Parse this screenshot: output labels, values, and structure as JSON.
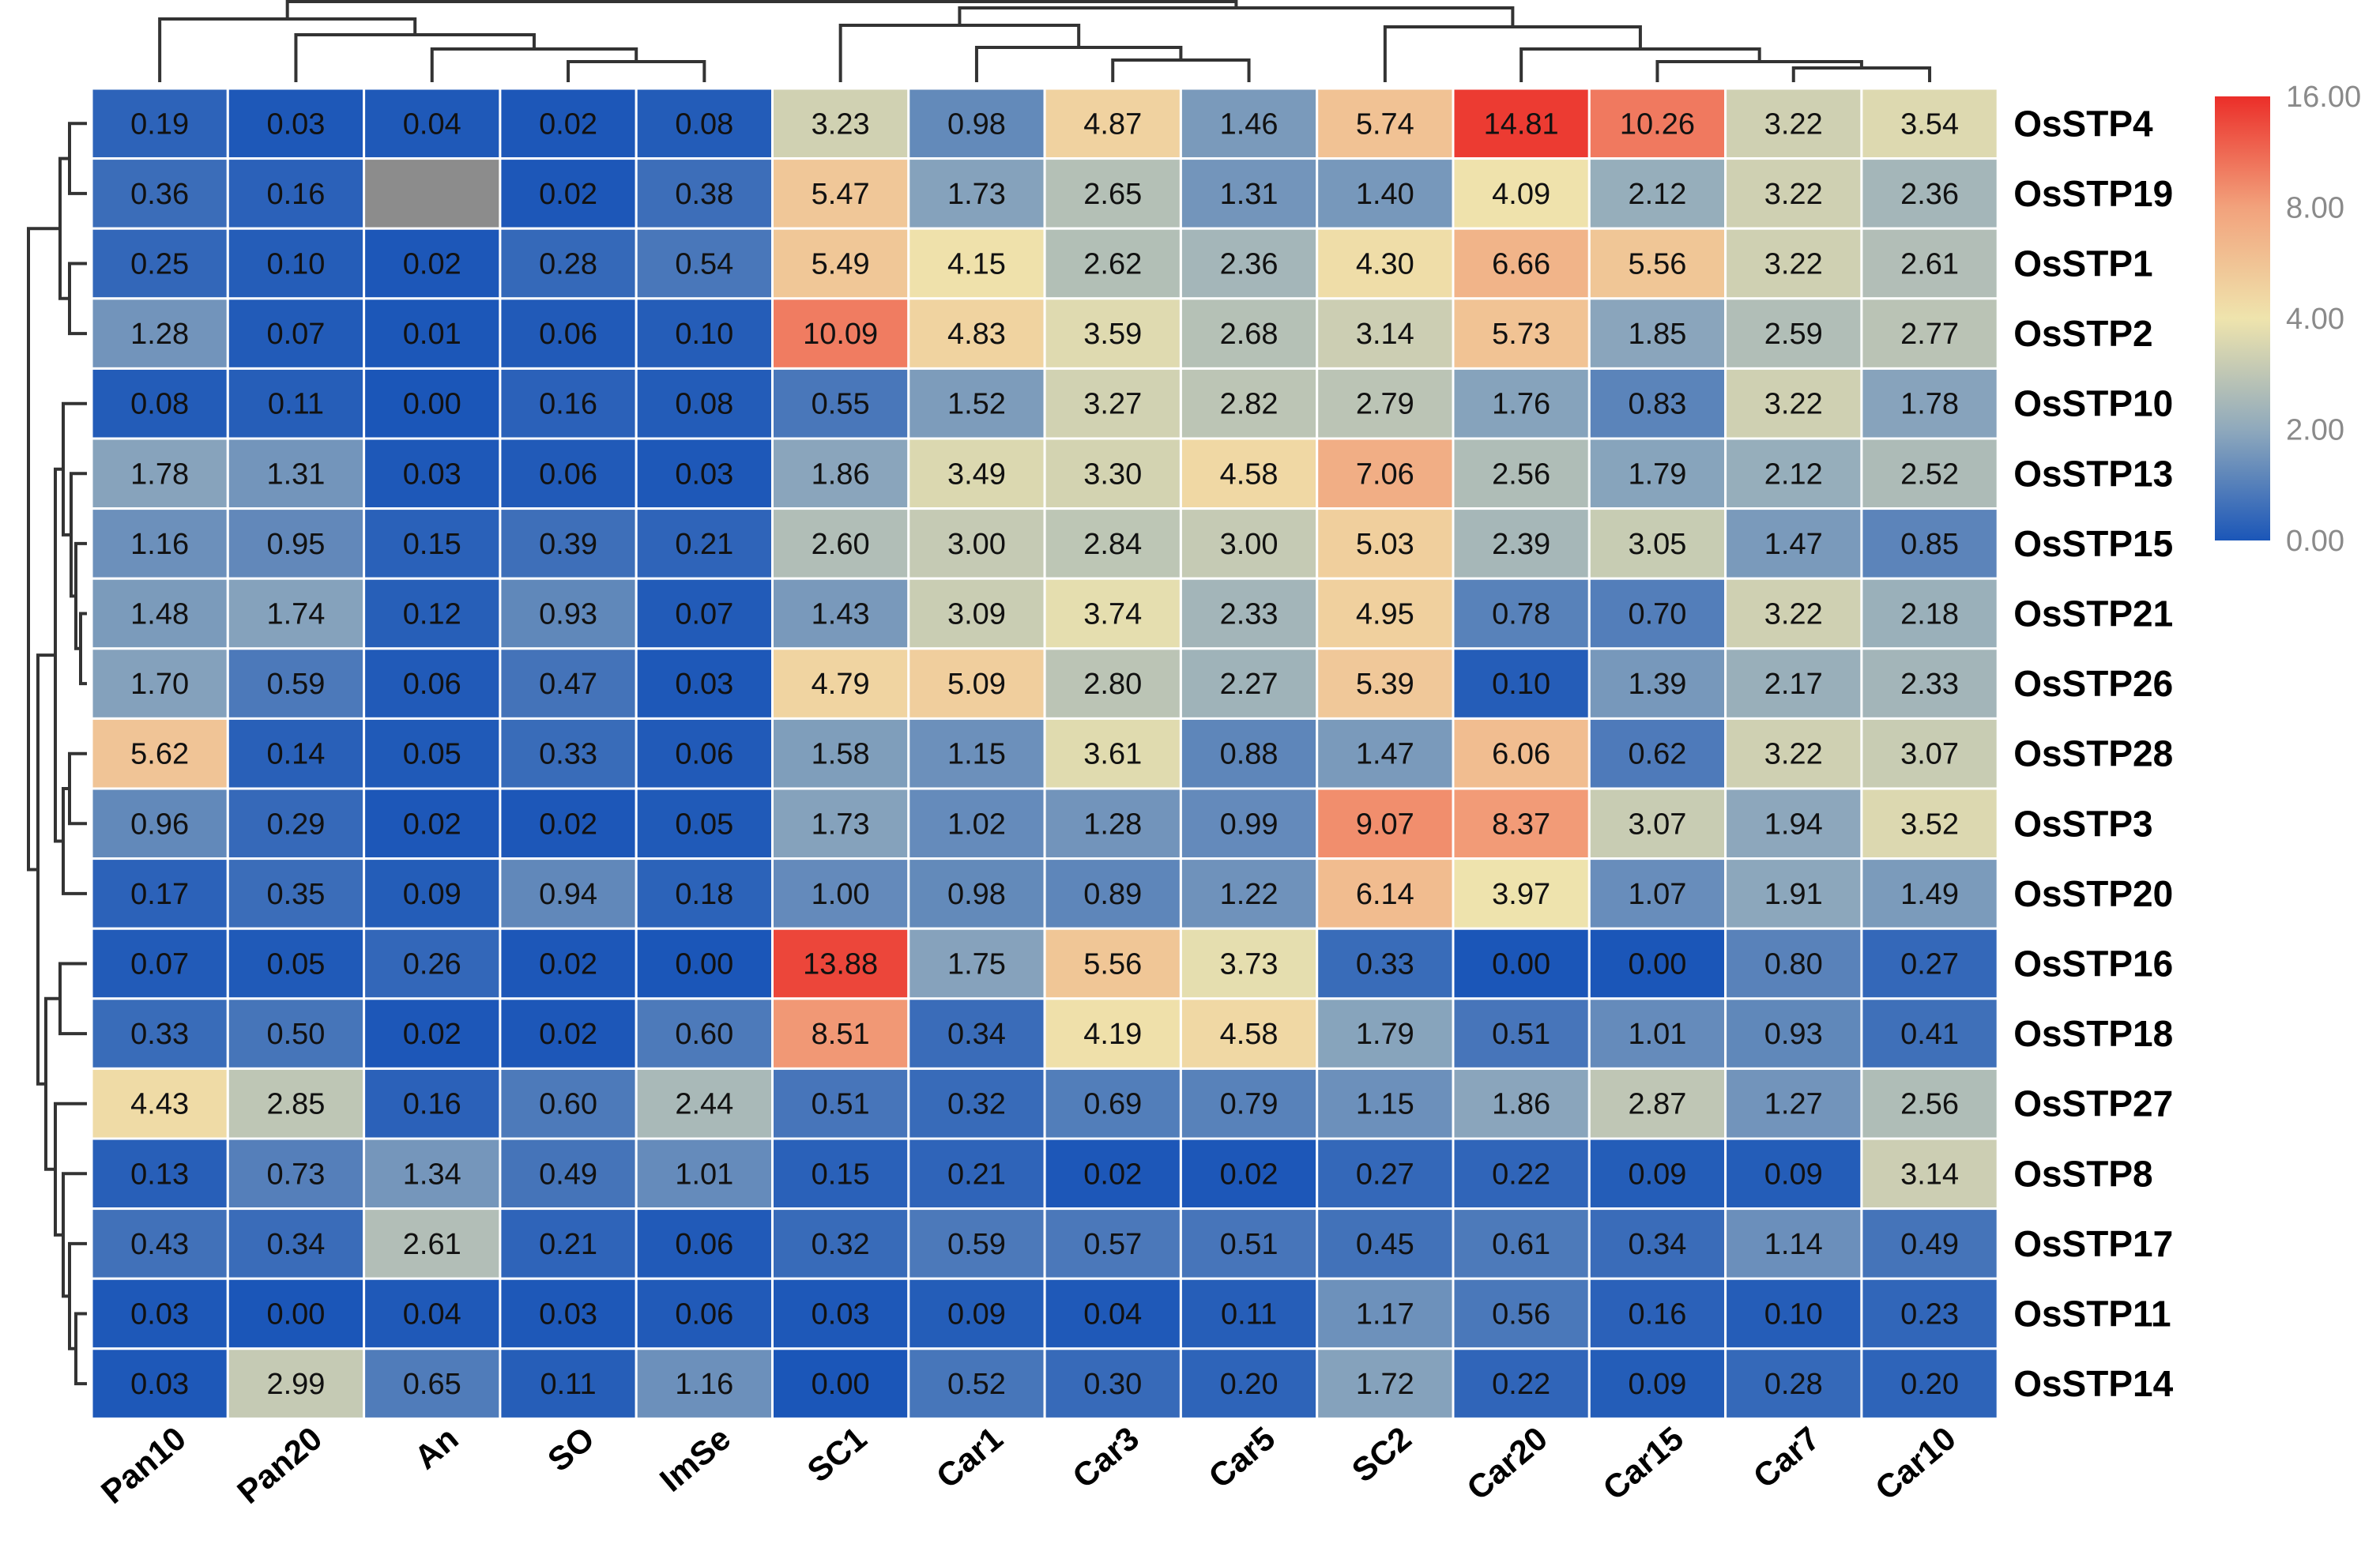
{
  "chart_data": {
    "type": "heatmap",
    "rows": [
      "OsSTP4",
      "OsSTP19",
      "OsSTP1",
      "OsSTP2",
      "OsSTP10",
      "OsSTP13",
      "OsSTP15",
      "OsSTP21",
      "OsSTP26",
      "OsSTP28",
      "OsSTP3",
      "OsSTP20",
      "OsSTP16",
      "OsSTP18",
      "OsSTP27",
      "OsSTP8",
      "OsSTP17",
      "OsSTP11",
      "OsSTP14"
    ],
    "columns": [
      "Pan10",
      "Pan20",
      "An",
      "SO",
      "ImSe",
      "SC1",
      "Car1",
      "Car3",
      "Car5",
      "SC2",
      "Car20",
      "Car15",
      "Car7",
      "Car10"
    ],
    "values": [
      [
        "0.19",
        "0.03",
        "0.04",
        "0.02",
        "0.08",
        "3.23",
        "0.98",
        "4.87",
        "1.46",
        "5.74",
        "14.81",
        "10.26",
        "3.22",
        "3.54"
      ],
      [
        "0.36",
        "0.16",
        null,
        "0.02",
        "0.38",
        "5.47",
        "1.73",
        "2.65",
        "1.31",
        "1.40",
        "4.09",
        "2.12",
        "3.22",
        "2.36"
      ],
      [
        "0.25",
        "0.10",
        "0.02",
        "0.28",
        "0.54",
        "5.49",
        "4.15",
        "2.62",
        "2.36",
        "4.30",
        "6.66",
        "5.56",
        "3.22",
        "2.61"
      ],
      [
        "1.28",
        "0.07",
        "0.01",
        "0.06",
        "0.10",
        "10.09",
        "4.83",
        "3.59",
        "2.68",
        "3.14",
        "5.73",
        "1.85",
        "2.59",
        "2.77"
      ],
      [
        "0.08",
        "0.11",
        "0.00",
        "0.16",
        "0.08",
        "0.55",
        "1.52",
        "3.27",
        "2.82",
        "2.79",
        "1.76",
        "0.83",
        "3.22",
        "1.78"
      ],
      [
        "1.78",
        "1.31",
        "0.03",
        "0.06",
        "0.03",
        "1.86",
        "3.49",
        "3.30",
        "4.58",
        "7.06",
        "2.56",
        "1.79",
        "2.12",
        "2.52"
      ],
      [
        "1.16",
        "0.95",
        "0.15",
        "0.39",
        "0.21",
        "2.60",
        "3.00",
        "2.84",
        "3.00",
        "5.03",
        "2.39",
        "3.05",
        "1.47",
        "0.85"
      ],
      [
        "1.48",
        "1.74",
        "0.12",
        "0.93",
        "0.07",
        "1.43",
        "3.09",
        "3.74",
        "2.33",
        "4.95",
        "0.78",
        "0.70",
        "3.22",
        "2.18"
      ],
      [
        "1.70",
        "0.59",
        "0.06",
        "0.47",
        "0.03",
        "4.79",
        "5.09",
        "2.80",
        "2.27",
        "5.39",
        "0.10",
        "1.39",
        "2.17",
        "2.33"
      ],
      [
        "5.62",
        "0.14",
        "0.05",
        "0.33",
        "0.06",
        "1.58",
        "1.15",
        "3.61",
        "0.88",
        "1.47",
        "6.06",
        "0.62",
        "3.22",
        "3.07"
      ],
      [
        "0.96",
        "0.29",
        "0.02",
        "0.02",
        "0.05",
        "1.73",
        "1.02",
        "1.28",
        "0.99",
        "9.07",
        "8.37",
        "3.07",
        "1.94",
        "3.52"
      ],
      [
        "0.17",
        "0.35",
        "0.09",
        "0.94",
        "0.18",
        "1.00",
        "0.98",
        "0.89",
        "1.22",
        "6.14",
        "3.97",
        "1.07",
        "1.91",
        "1.49"
      ],
      [
        "0.07",
        "0.05",
        "0.26",
        "0.02",
        "0.00",
        "13.88",
        "1.75",
        "5.56",
        "3.73",
        "0.33",
        "0.00",
        "0.00",
        "0.80",
        "0.27"
      ],
      [
        "0.33",
        "0.50",
        "0.02",
        "0.02",
        "0.60",
        "8.51",
        "0.34",
        "4.19",
        "4.58",
        "1.79",
        "0.51",
        "1.01",
        "0.93",
        "0.41"
      ],
      [
        "4.43",
        "2.85",
        "0.16",
        "0.60",
        "2.44",
        "0.51",
        "0.32",
        "0.69",
        "0.79",
        "1.15",
        "1.86",
        "2.87",
        "1.27",
        "2.56"
      ],
      [
        "0.13",
        "0.73",
        "1.34",
        "0.49",
        "1.01",
        "0.15",
        "0.21",
        "0.02",
        "0.02",
        "0.27",
        "0.22",
        "0.09",
        "0.09",
        "3.14"
      ],
      [
        "0.43",
        "0.34",
        "2.61",
        "0.21",
        "0.06",
        "0.32",
        "0.59",
        "0.57",
        "0.51",
        "0.45",
        "0.61",
        "0.34",
        "1.14",
        "0.49"
      ],
      [
        "0.03",
        "0.00",
        "0.04",
        "0.03",
        "0.06",
        "0.03",
        "0.09",
        "0.04",
        "0.11",
        "1.17",
        "0.56",
        "0.16",
        "0.10",
        "0.23"
      ],
      [
        "0.03",
        "2.99",
        "0.65",
        "0.11",
        "1.16",
        "0.00",
        "0.52",
        "0.30",
        "0.20",
        "1.72",
        "0.22",
        "0.09",
        "0.28",
        "0.20"
      ]
    ],
    "missing_color": "#8c8c8c",
    "color_scale": {
      "type": "log2",
      "stops": [
        {
          "value": 0,
          "color": "#1b56b8"
        },
        {
          "value": 2,
          "color": "#8fa9bc"
        },
        {
          "value": 4,
          "color": "#efe4ad"
        },
        {
          "value": 8,
          "color": "#f2a27c"
        },
        {
          "value": 16,
          "color": "#eb2e29"
        }
      ],
      "legend_labels": [
        "16.00",
        "8.00",
        "4.00",
        "2.00",
        "0.00"
      ],
      "legend_placement": "top-right"
    },
    "row_dendrogram": true,
    "column_dendrogram": true,
    "grid": false
  }
}
